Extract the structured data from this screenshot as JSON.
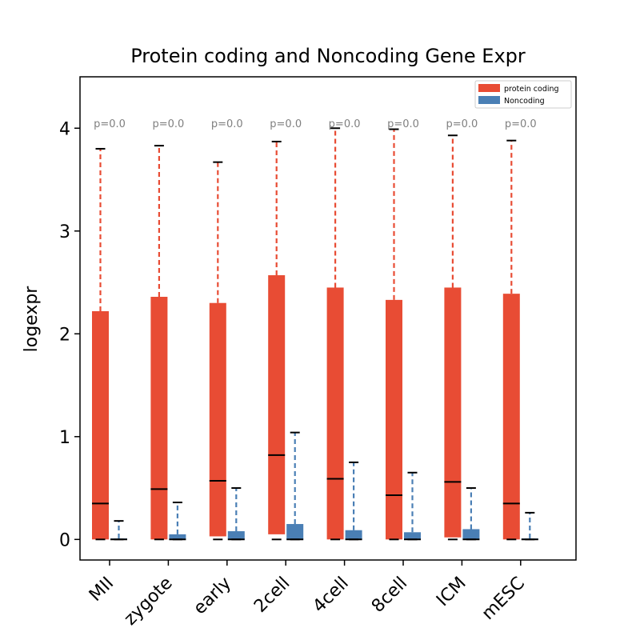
{
  "chart_data": {
    "type": "box",
    "title": "Protein coding and Noncoding Gene Expr",
    "xlabel": "",
    "ylabel": "logexpr",
    "ylim": [
      -0.2,
      4.5
    ],
    "yticks": [
      "0",
      "1",
      "2",
      "3",
      "4"
    ],
    "categories": [
      "MII",
      "zygote",
      "early",
      "2cell",
      "4cell",
      "8cell",
      "ICM",
      "mESC"
    ],
    "pvalues": [
      "p=0.0",
      "p=0.0",
      "p=0.0",
      "p=0.0",
      "p=0.0",
      "p=0.0",
      "p=0.0",
      "p=0.0"
    ],
    "legend_position": "top-right",
    "series": [
      {
        "name": "protein coding",
        "color": "#e84c34",
        "q1": [
          0.0,
          0.0,
          0.03,
          0.05,
          0.0,
          0.0,
          0.02,
          0.0
        ],
        "median": [
          0.35,
          0.49,
          0.57,
          0.82,
          0.59,
          0.43,
          0.56,
          0.35
        ],
        "q3": [
          2.22,
          2.36,
          2.3,
          2.57,
          2.45,
          2.33,
          2.45,
          2.39
        ],
        "whisker_low": [
          0.0,
          0.0,
          0.0,
          0.0,
          0.0,
          0.0,
          0.0,
          0.0
        ],
        "whisker_high": [
          3.8,
          3.83,
          3.67,
          3.87,
          4.0,
          3.99,
          3.93,
          3.88
        ]
      },
      {
        "name": "Noncoding",
        "color": "#4a7fb5",
        "q1": [
          0.0,
          0.0,
          0.0,
          0.0,
          0.0,
          0.0,
          0.0,
          0.0
        ],
        "median": [
          0.0,
          0.0,
          0.0,
          0.0,
          0.0,
          0.0,
          0.0,
          0.0
        ],
        "q3": [
          0.01,
          0.05,
          0.08,
          0.15,
          0.09,
          0.07,
          0.1,
          0.01
        ],
        "whisker_low": [
          0.0,
          0.0,
          0.0,
          0.0,
          0.0,
          0.0,
          0.0,
          0.0
        ],
        "whisker_high": [
          0.18,
          0.36,
          0.5,
          1.04,
          0.75,
          0.65,
          0.5,
          0.26
        ]
      }
    ]
  }
}
